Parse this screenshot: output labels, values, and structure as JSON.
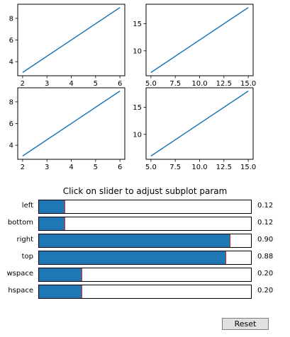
{
  "chart_data": [
    {
      "type": "line",
      "x": [
        2,
        6
      ],
      "y": [
        3,
        9
      ],
      "xlim": [
        1.8,
        6.2
      ],
      "ylim": [
        2.7,
        9.3
      ],
      "xticks": [
        2,
        3,
        4,
        5,
        6
      ],
      "yticks": [
        4,
        6,
        8
      ],
      "color": "#1f77b4"
    },
    {
      "type": "line",
      "x": [
        5,
        15
      ],
      "y": [
        6,
        18
      ],
      "xlim": [
        4.5,
        15.5
      ],
      "ylim": [
        5.4,
        18.6
      ],
      "xticks": [
        "5.0",
        "7.5",
        "10.0",
        "12.5",
        "15.0"
      ],
      "yticks": [
        "10",
        "15"
      ],
      "color": "#1f77b4"
    },
    {
      "type": "line",
      "x": [
        2,
        6
      ],
      "y": [
        3,
        9
      ],
      "xlim": [
        1.8,
        6.2
      ],
      "ylim": [
        2.7,
        9.3
      ],
      "xticks": [
        2,
        3,
        4,
        5,
        6
      ],
      "yticks": [
        4,
        6,
        8
      ],
      "color": "#1f77b4"
    },
    {
      "type": "line",
      "x": [
        5,
        15
      ],
      "y": [
        6,
        18
      ],
      "xlim": [
        4.5,
        15.5
      ],
      "ylim": [
        5.4,
        18.6
      ],
      "xticks": [
        "5.0",
        "7.5",
        "10.0",
        "12.5",
        "15.0"
      ],
      "yticks": [
        "10",
        "15"
      ],
      "color": "#1f77b4"
    }
  ],
  "panel": {
    "title": "Click on slider to adjust subplot param",
    "reset_label": "Reset",
    "sliders": [
      {
        "label": "left",
        "value": 0.12,
        "display": "0.12"
      },
      {
        "label": "bottom",
        "value": 0.12,
        "display": "0.12"
      },
      {
        "label": "right",
        "value": 0.9,
        "display": "0.90"
      },
      {
        "label": "top",
        "value": 0.88,
        "display": "0.88"
      },
      {
        "label": "wspace",
        "value": 0.2,
        "display": "0.20"
      },
      {
        "label": "hspace",
        "value": 0.2,
        "display": "0.20"
      }
    ],
    "colors": {
      "fill": "#1f77b4",
      "marker": "#d62728"
    }
  }
}
